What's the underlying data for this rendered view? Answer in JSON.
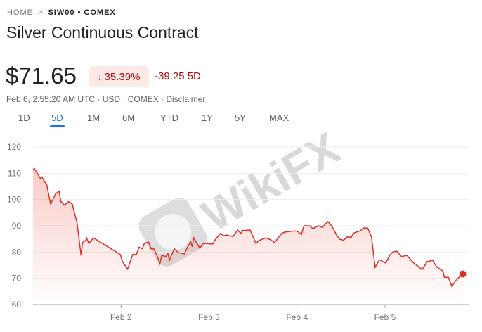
{
  "breadcrumb": {
    "home": "HOME",
    "separator": ">",
    "symbol": "SIW00 • COMEX"
  },
  "title": "Silver Continuous Contract",
  "quote": {
    "price": "$71.65",
    "change_percent": "35.39%",
    "change_direction_icon": "arrow-down-icon",
    "change_abs": "-39.25 5D",
    "meta": "Feb 6, 2:55:20 AM UTC · USD · COMEX · ",
    "disclaimer": "Disclaimer"
  },
  "tabs": [
    {
      "label": "1D",
      "active": false
    },
    {
      "label": "5D",
      "active": true
    },
    {
      "label": "1M",
      "active": false
    },
    {
      "label": "6M",
      "active": false
    },
    {
      "label": "YTD",
      "active": false
    },
    {
      "label": "1Y",
      "active": false
    },
    {
      "label": "5Y",
      "active": false
    },
    {
      "label": "MAX",
      "active": false
    }
  ],
  "watermark": "WikiFX",
  "colors": {
    "line": "#d93025",
    "negative": "#a50e0e",
    "negative_bg": "#fce8e6",
    "accent": "#1a73e8"
  },
  "chart_data": {
    "type": "area",
    "xlabel": "",
    "ylabel": "",
    "ylim": [
      60,
      120
    ],
    "xlim": [
      "Feb 1 00:00",
      "Feb 5 23:00"
    ],
    "yticks": [
      60,
      70,
      80,
      90,
      100,
      110,
      120
    ],
    "xticks": [
      "Feb 2",
      "Feb 3",
      "Feb 4",
      "Feb 5"
    ],
    "grid": true,
    "last_value": 71.65,
    "points": [
      [
        "Feb 1 00:00",
        111.2
      ],
      [
        "Feb 1 00:18",
        111.9
      ],
      [
        "Feb 1 01:00",
        110.4
      ],
      [
        "Feb 1 02:00",
        108.1
      ],
      [
        "Feb 1 02:30",
        108.4
      ],
      [
        "Feb 1 03:18",
        106.5
      ],
      [
        "Feb 1 03:42",
        105.9
      ],
      [
        "Feb 1 04:48",
        98.3
      ],
      [
        "Feb 1 06:12",
        102.3
      ],
      [
        "Feb 1 07:06",
        103.2
      ],
      [
        "Feb 1 07:36",
        99.2
      ],
      [
        "Feb 1 08:36",
        97.9
      ],
      [
        "Feb 1 09:42",
        99.2
      ],
      [
        "Feb 1 10:42",
        98.3
      ],
      [
        "Feb 1 11:24",
        94.3
      ],
      [
        "Feb 1 12:00",
        91.2
      ],
      [
        "Feb 1 13:06",
        78.7
      ],
      [
        "Feb 1 13:30",
        83.6
      ],
      [
        "Feb 1 14:24",
        84.5
      ],
      [
        "Feb 1 14:36",
        85.4
      ],
      [
        "Feb 1 15:12",
        83.3
      ],
      [
        "Feb 1 16:30",
        85.4
      ],
      [
        "Feb 1 23:48",
        79.1
      ],
      [
        "Feb 2 00:24",
        76.4
      ],
      [
        "Feb 2 01:48",
        73.5
      ],
      [
        "Feb 2 03:12",
        79.1
      ],
      [
        "Feb 2 04:12",
        79.1
      ],
      [
        "Feb 2 04:54",
        81.8
      ],
      [
        "Feb 2 05:48",
        81.3
      ],
      [
        "Feb 2 06:24",
        83.4
      ],
      [
        "Feb 2 07:30",
        83.8
      ],
      [
        "Feb 2 08:12",
        81.3
      ],
      [
        "Feb 2 09:00",
        81.2
      ],
      [
        "Feb 2 09:48",
        78.7
      ],
      [
        "Feb 2 10:36",
        75.6
      ],
      [
        "Feb 2 11:06",
        78.7
      ],
      [
        "Feb 2 12:12",
        78.3
      ],
      [
        "Feb 2 12:48",
        79.4
      ],
      [
        "Feb 2 13:12",
        76.8
      ],
      [
        "Feb 2 14:00",
        79.6
      ],
      [
        "Feb 2 14:36",
        81.2
      ],
      [
        "Feb 2 15:36",
        79.8
      ],
      [
        "Feb 2 17:18",
        79.3
      ],
      [
        "Feb 2 18:06",
        81.8
      ],
      [
        "Feb 2 19:00",
        84.0
      ],
      [
        "Feb 2 19:24",
        82.0
      ],
      [
        "Feb 2 19:48",
        85.4
      ],
      [
        "Feb 2 21:30",
        81.5
      ],
      [
        "Feb 2 22:24",
        83.3
      ],
      [
        "Feb 3 01:00",
        83.1
      ],
      [
        "Feb 3 01:48",
        84.9
      ],
      [
        "Feb 3 03:06",
        87.1
      ],
      [
        "Feb 3 04:00",
        86.2
      ],
      [
        "Feb 3 04:48",
        86.5
      ],
      [
        "Feb 3 06:30",
        85.9
      ],
      [
        "Feb 3 07:48",
        88.4
      ],
      [
        "Feb 3 08:42",
        87.1
      ],
      [
        "Feb 3 09:06",
        88.2
      ],
      [
        "Feb 3 11:12",
        88.4
      ],
      [
        "Feb 3 12:48",
        83.3
      ],
      [
        "Feb 3 13:48",
        84.5
      ],
      [
        "Feb 3 15:30",
        85.4
      ],
      [
        "Feb 3 16:48",
        84.7
      ],
      [
        "Feb 3 17:54",
        83.6
      ],
      [
        "Feb 3 19:48",
        87.1
      ],
      [
        "Feb 3 20:36",
        87.6
      ],
      [
        "Feb 3 22:48",
        88.0
      ],
      [
        "Feb 4 00:00",
        88.0
      ],
      [
        "Feb 4 01:12",
        86.7
      ],
      [
        "Feb 4 01:54",
        90.0
      ],
      [
        "Feb 4 03:30",
        90.0
      ],
      [
        "Feb 4 04:18",
        88.9
      ],
      [
        "Feb 4 05:54",
        90.0
      ],
      [
        "Feb 4 06:54",
        89.4
      ],
      [
        "Feb 4 08:24",
        91.6
      ],
      [
        "Feb 4 09:30",
        89.8
      ],
      [
        "Feb 4 10:42",
        86.7
      ],
      [
        "Feb 4 11:36",
        84.9
      ],
      [
        "Feb 4 12:42",
        84.5
      ],
      [
        "Feb 4 13:42",
        85.8
      ],
      [
        "Feb 4 14:48",
        85.6
      ],
      [
        "Feb 4 15:18",
        87.1
      ],
      [
        "Feb 4 16:18",
        87.7
      ],
      [
        "Feb 4 17:06",
        88.0
      ],
      [
        "Feb 4 18:12",
        89.2
      ],
      [
        "Feb 4 19:18",
        89.1
      ],
      [
        "Feb 4 20:18",
        85.8
      ],
      [
        "Feb 4 21:18",
        74.2
      ],
      [
        "Feb 4 22:30",
        77.1
      ],
      [
        "Feb 5 00:12",
        75.8
      ],
      [
        "Feb 5 01:18",
        78.8
      ],
      [
        "Feb 5 02:06",
        80.0
      ],
      [
        "Feb 5 03:12",
        80.3
      ],
      [
        "Feb 5 04:30",
        78.3
      ],
      [
        "Feb 5 06:00",
        78.7
      ],
      [
        "Feb 5 07:42",
        76.0
      ],
      [
        "Feb 5 09:24",
        74.2
      ],
      [
        "Feb 5 10:06",
        73.3
      ],
      [
        "Feb 5 11:30",
        76.4
      ],
      [
        "Feb 5 13:00",
        76.8
      ],
      [
        "Feb 5 14:06",
        74.3
      ],
      [
        "Feb 5 15:48",
        72.8
      ],
      [
        "Feb 5 16:12",
        70.4
      ],
      [
        "Feb 5 17:18",
        70.4
      ],
      [
        "Feb 5 18:12",
        67.0
      ],
      [
        "Feb 5 19:30",
        69.5
      ],
      [
        "Feb 5 21:12",
        71.65
      ]
    ]
  }
}
